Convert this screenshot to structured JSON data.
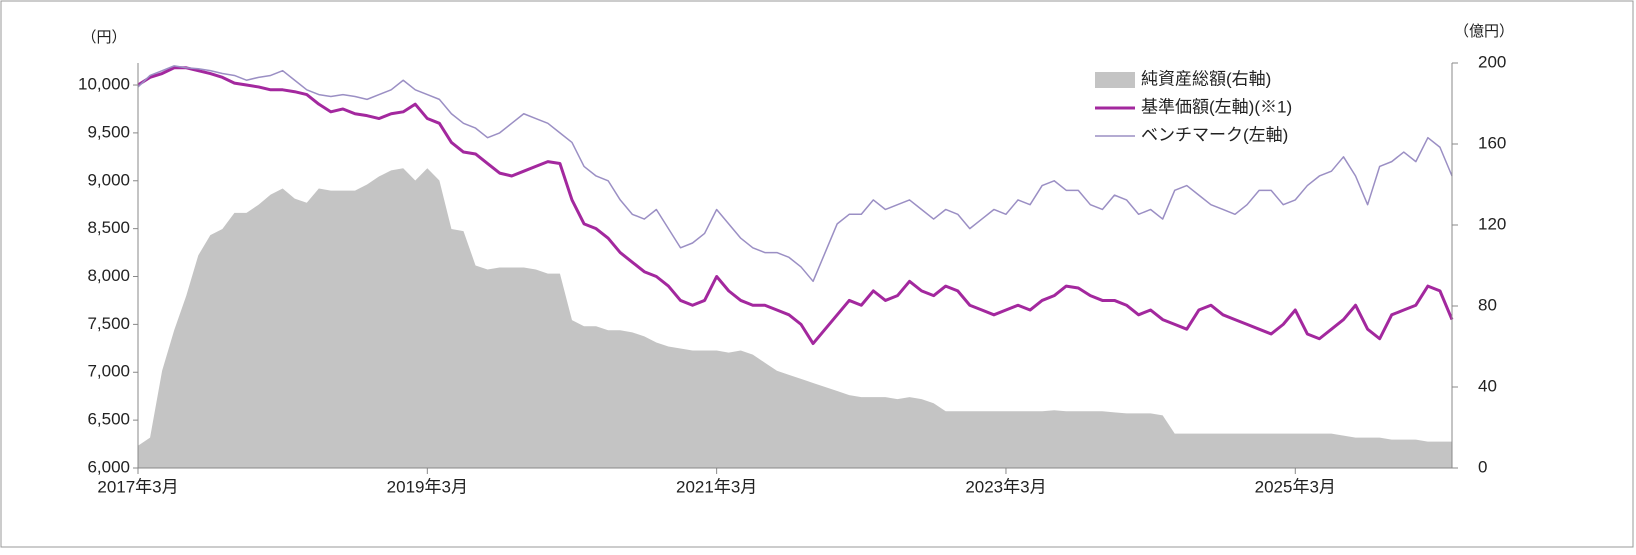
{
  "chart_data": {
    "type": "line",
    "y_label": "（円）",
    "y2_label": "（億円）",
    "x": [
      "2017-03",
      "2017-04",
      "2017-05",
      "2017-06",
      "2017-07",
      "2017-08",
      "2017-09",
      "2017-10",
      "2017-11",
      "2017-12",
      "2018-01",
      "2018-02",
      "2018-03",
      "2018-04",
      "2018-05",
      "2018-06",
      "2018-07",
      "2018-08",
      "2018-09",
      "2018-10",
      "2018-11",
      "2018-12",
      "2019-01",
      "2019-02",
      "2019-03",
      "2019-04",
      "2019-05",
      "2019-06",
      "2019-07",
      "2019-08",
      "2019-09",
      "2019-10",
      "2019-11",
      "2019-12",
      "2020-01",
      "2020-02",
      "2020-03",
      "2020-04",
      "2020-05",
      "2020-06",
      "2020-07",
      "2020-08",
      "2020-09",
      "2020-10",
      "2020-11",
      "2020-12",
      "2021-01",
      "2021-02",
      "2021-03",
      "2021-04",
      "2021-05",
      "2021-06",
      "2021-07",
      "2021-08",
      "2021-09",
      "2021-10",
      "2021-11",
      "2021-12",
      "2022-01",
      "2022-02",
      "2022-03",
      "2022-04",
      "2022-05",
      "2022-06",
      "2022-07",
      "2022-08",
      "2022-09",
      "2022-10",
      "2022-11",
      "2022-12",
      "2023-01",
      "2023-02",
      "2023-03",
      "2023-04",
      "2023-05",
      "2023-06",
      "2023-07",
      "2023-08",
      "2023-09",
      "2023-10",
      "2023-11",
      "2023-12",
      "2024-01",
      "2024-02",
      "2024-03",
      "2024-04",
      "2024-05",
      "2024-06",
      "2024-07",
      "2024-08",
      "2024-09",
      "2024-10",
      "2024-11",
      "2024-12",
      "2025-01",
      "2025-02",
      "2025-03",
      "2025-04",
      "2025-05",
      "2025-06",
      "2025-07",
      "2025-08",
      "2025-09",
      "2025-10",
      "2025-11",
      "2025-12",
      "2026-01",
      "2026-02",
      "2026-03",
      "2026-04"
    ],
    "xlim": [
      "2017-03",
      "2026-04"
    ],
    "xticks": [
      {
        "value": "2017-03",
        "label": "2017年3月"
      },
      {
        "value": "2019-03",
        "label": "2019年3月"
      },
      {
        "value": "2021-03",
        "label": "2021年3月"
      },
      {
        "value": "2023-03",
        "label": "2023年3月"
      },
      {
        "value": "2025-03",
        "label": "2025年3月"
      }
    ],
    "ylim": [
      6000,
      10230
    ],
    "yticks": [
      {
        "value": 6000,
        "label": "6,000"
      },
      {
        "value": 6500,
        "label": "6,500"
      },
      {
        "value": 7000,
        "label": "7,000"
      },
      {
        "value": 7500,
        "label": "7,500"
      },
      {
        "value": 8000,
        "label": "8,000"
      },
      {
        "value": 8500,
        "label": "8,500"
      },
      {
        "value": 9000,
        "label": "9,000"
      },
      {
        "value": 9500,
        "label": "9,500"
      },
      {
        "value": 10000,
        "label": "10,000"
      }
    ],
    "y2lim": [
      0,
      200
    ],
    "y2ticks": [
      0,
      40,
      80,
      120,
      160,
      200
    ],
    "series": [
      {
        "name": "純資産総額(右軸)",
        "kind": "area",
        "axis": "y2",
        "color": "#c4c4c4",
        "values": [
          11,
          15,
          48,
          68,
          85,
          105,
          115,
          118,
          126,
          126,
          130,
          135,
          138,
          133,
          131,
          138,
          137,
          137,
          137,
          140,
          144,
          147,
          148,
          142,
          148,
          142,
          118,
          117,
          100,
          98,
          99,
          99,
          99,
          98,
          96,
          96,
          73,
          70,
          70,
          68,
          68,
          67,
          65,
          62,
          60,
          59,
          58,
          58,
          58,
          57,
          58,
          56,
          52,
          48,
          46,
          44,
          42,
          40,
          38,
          36,
          35,
          35,
          35,
          34,
          35,
          34,
          32,
          28,
          28,
          28,
          28,
          28,
          28,
          28,
          28,
          28,
          28.5,
          28,
          28,
          28,
          28,
          27.5,
          27,
          27,
          27,
          26,
          17,
          17,
          17,
          17,
          17,
          17,
          17,
          17,
          17,
          17,
          17,
          17,
          17,
          17,
          16,
          15,
          15,
          15,
          14,
          14,
          14,
          13,
          13,
          13
        ]
      },
      {
        "name": "基準価額(左軸)(※1)",
        "kind": "line",
        "color": "#a3289e",
        "width": 3,
        "values": [
          10000,
          10080,
          10120,
          10180,
          10180,
          10150,
          10120,
          10080,
          10020,
          10000,
          9980,
          9950,
          9950,
          9930,
          9900,
          9800,
          9720,
          9750,
          9700,
          9680,
          9650,
          9700,
          9720,
          9800,
          9650,
          9600,
          9400,
          9300,
          9280,
          9180,
          9080,
          9050,
          9100,
          9150,
          9200,
          9180,
          8800,
          8550,
          8500,
          8400,
          8250,
          8150,
          8050,
          8000,
          7900,
          7750,
          7700,
          7750,
          8000,
          7850,
          7750,
          7700,
          7700,
          7650,
          7600,
          7500,
          7300,
          7450,
          7600,
          7750,
          7700,
          7850,
          7750,
          7800,
          7950,
          7850,
          7800,
          7900,
          7850,
          7700,
          7650,
          7600,
          7650,
          7700,
          7650,
          7750,
          7800,
          7900,
          7880,
          7800,
          7750,
          7750,
          7700,
          7600,
          7650,
          7550,
          7500,
          7450,
          7650,
          7700,
          7600,
          7550,
          7500,
          7450,
          7400,
          7500,
          7650,
          7400,
          7350,
          7450,
          7550,
          7700,
          7450,
          7350,
          7600,
          7650,
          7700,
          7900,
          7850,
          7550
        ]
      },
      {
        "name": "ベンチマーク(左軸)",
        "kind": "line",
        "color": "#9b8fc4",
        "width": 1.5,
        "values": [
          9980,
          10100,
          10150,
          10200,
          10180,
          10170,
          10150,
          10120,
          10100,
          10050,
          10080,
          10100,
          10150,
          10050,
          9950,
          9900,
          9880,
          9900,
          9880,
          9850,
          9900,
          9950,
          10050,
          9950,
          9900,
          9850,
          9700,
          9600,
          9550,
          9450,
          9500,
          9600,
          9700,
          9650,
          9600,
          9500,
          9400,
          9150,
          9050,
          9000,
          8800,
          8650,
          8600,
          8700,
          8500,
          8300,
          8350,
          8450,
          8700,
          8550,
          8400,
          8300,
          8250,
          8250,
          8200,
          8100,
          7950,
          8250,
          8550,
          8650,
          8650,
          8800,
          8700,
          8750,
          8800,
          8700,
          8600,
          8700,
          8650,
          8500,
          8600,
          8700,
          8650,
          8800,
          8750,
          8950,
          9000,
          8900,
          8900,
          8750,
          8700,
          8850,
          8800,
          8650,
          8700,
          8600,
          8900,
          8950,
          8850,
          8750,
          8700,
          8650,
          8750,
          8900,
          8900,
          8750,
          8800,
          8950,
          9050,
          9100,
          9250,
          9050,
          8750,
          9150,
          9200,
          9300,
          9200,
          9450,
          9350,
          9050
        ]
      }
    ]
  }
}
